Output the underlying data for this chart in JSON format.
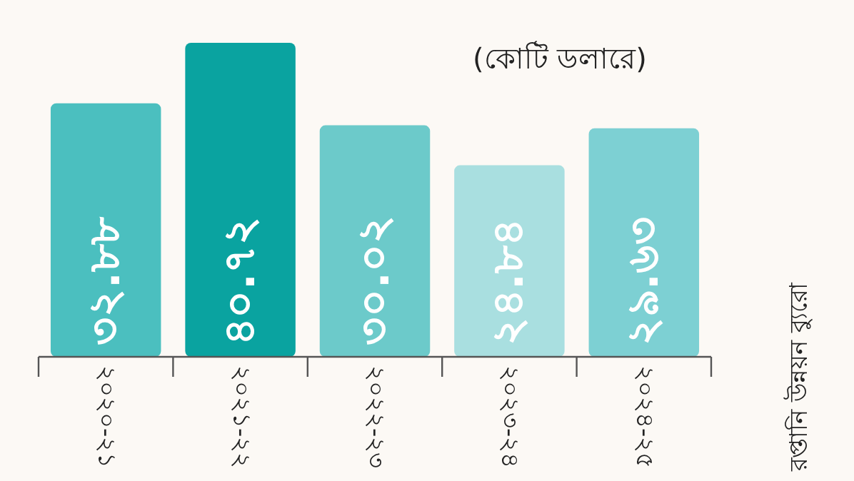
{
  "chart_data": {
    "type": "bar",
    "subtitle": "(কোটি ডলারে)",
    "categories": [
      "২০২০-২১",
      "২০২১-২২",
      "২০২২-২৩",
      "২০২৩-২৪",
      "২০২৪-২৫"
    ],
    "values": [
      32.88,
      40.72,
      30.02,
      24.84,
      29.63
    ],
    "value_labels": [
      "৩২.৮৮",
      "৪০.৭২",
      "৩০.০২",
      "২৪.৮৪",
      "২৯.৬৩"
    ],
    "colors": [
      "#4bbfbf",
      "#0aa3a0",
      "#6ccaca",
      "#a9dfe0",
      "#7dd0d3"
    ],
    "annotations": [
      "রপ্তানি উন্নয়ন ব্যুরো"
    ]
  }
}
